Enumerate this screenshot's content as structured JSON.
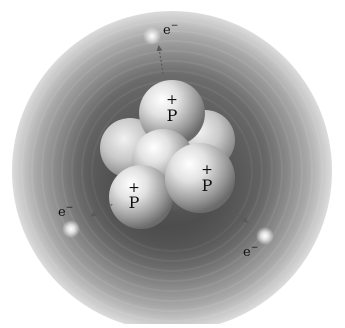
{
  "diagram": {
    "nucleus": {
      "protons": [
        {
          "label": "P",
          "charge": "+"
        },
        {
          "label": "P",
          "charge": "+"
        },
        {
          "label": "P",
          "charge": "+"
        }
      ]
    },
    "electrons": [
      {
        "label": "e",
        "charge": "−"
      },
      {
        "label": "e",
        "charge": "−"
      },
      {
        "label": "e",
        "charge": "−"
      }
    ],
    "colors": {
      "background": "#ffffff",
      "cloud_outer": "#d9d9d9",
      "cloud_inner": "#4a4a4a",
      "particle_light": "#f4f4f4",
      "particle_dark": "#7a7a7a",
      "text": "#111111"
    }
  }
}
